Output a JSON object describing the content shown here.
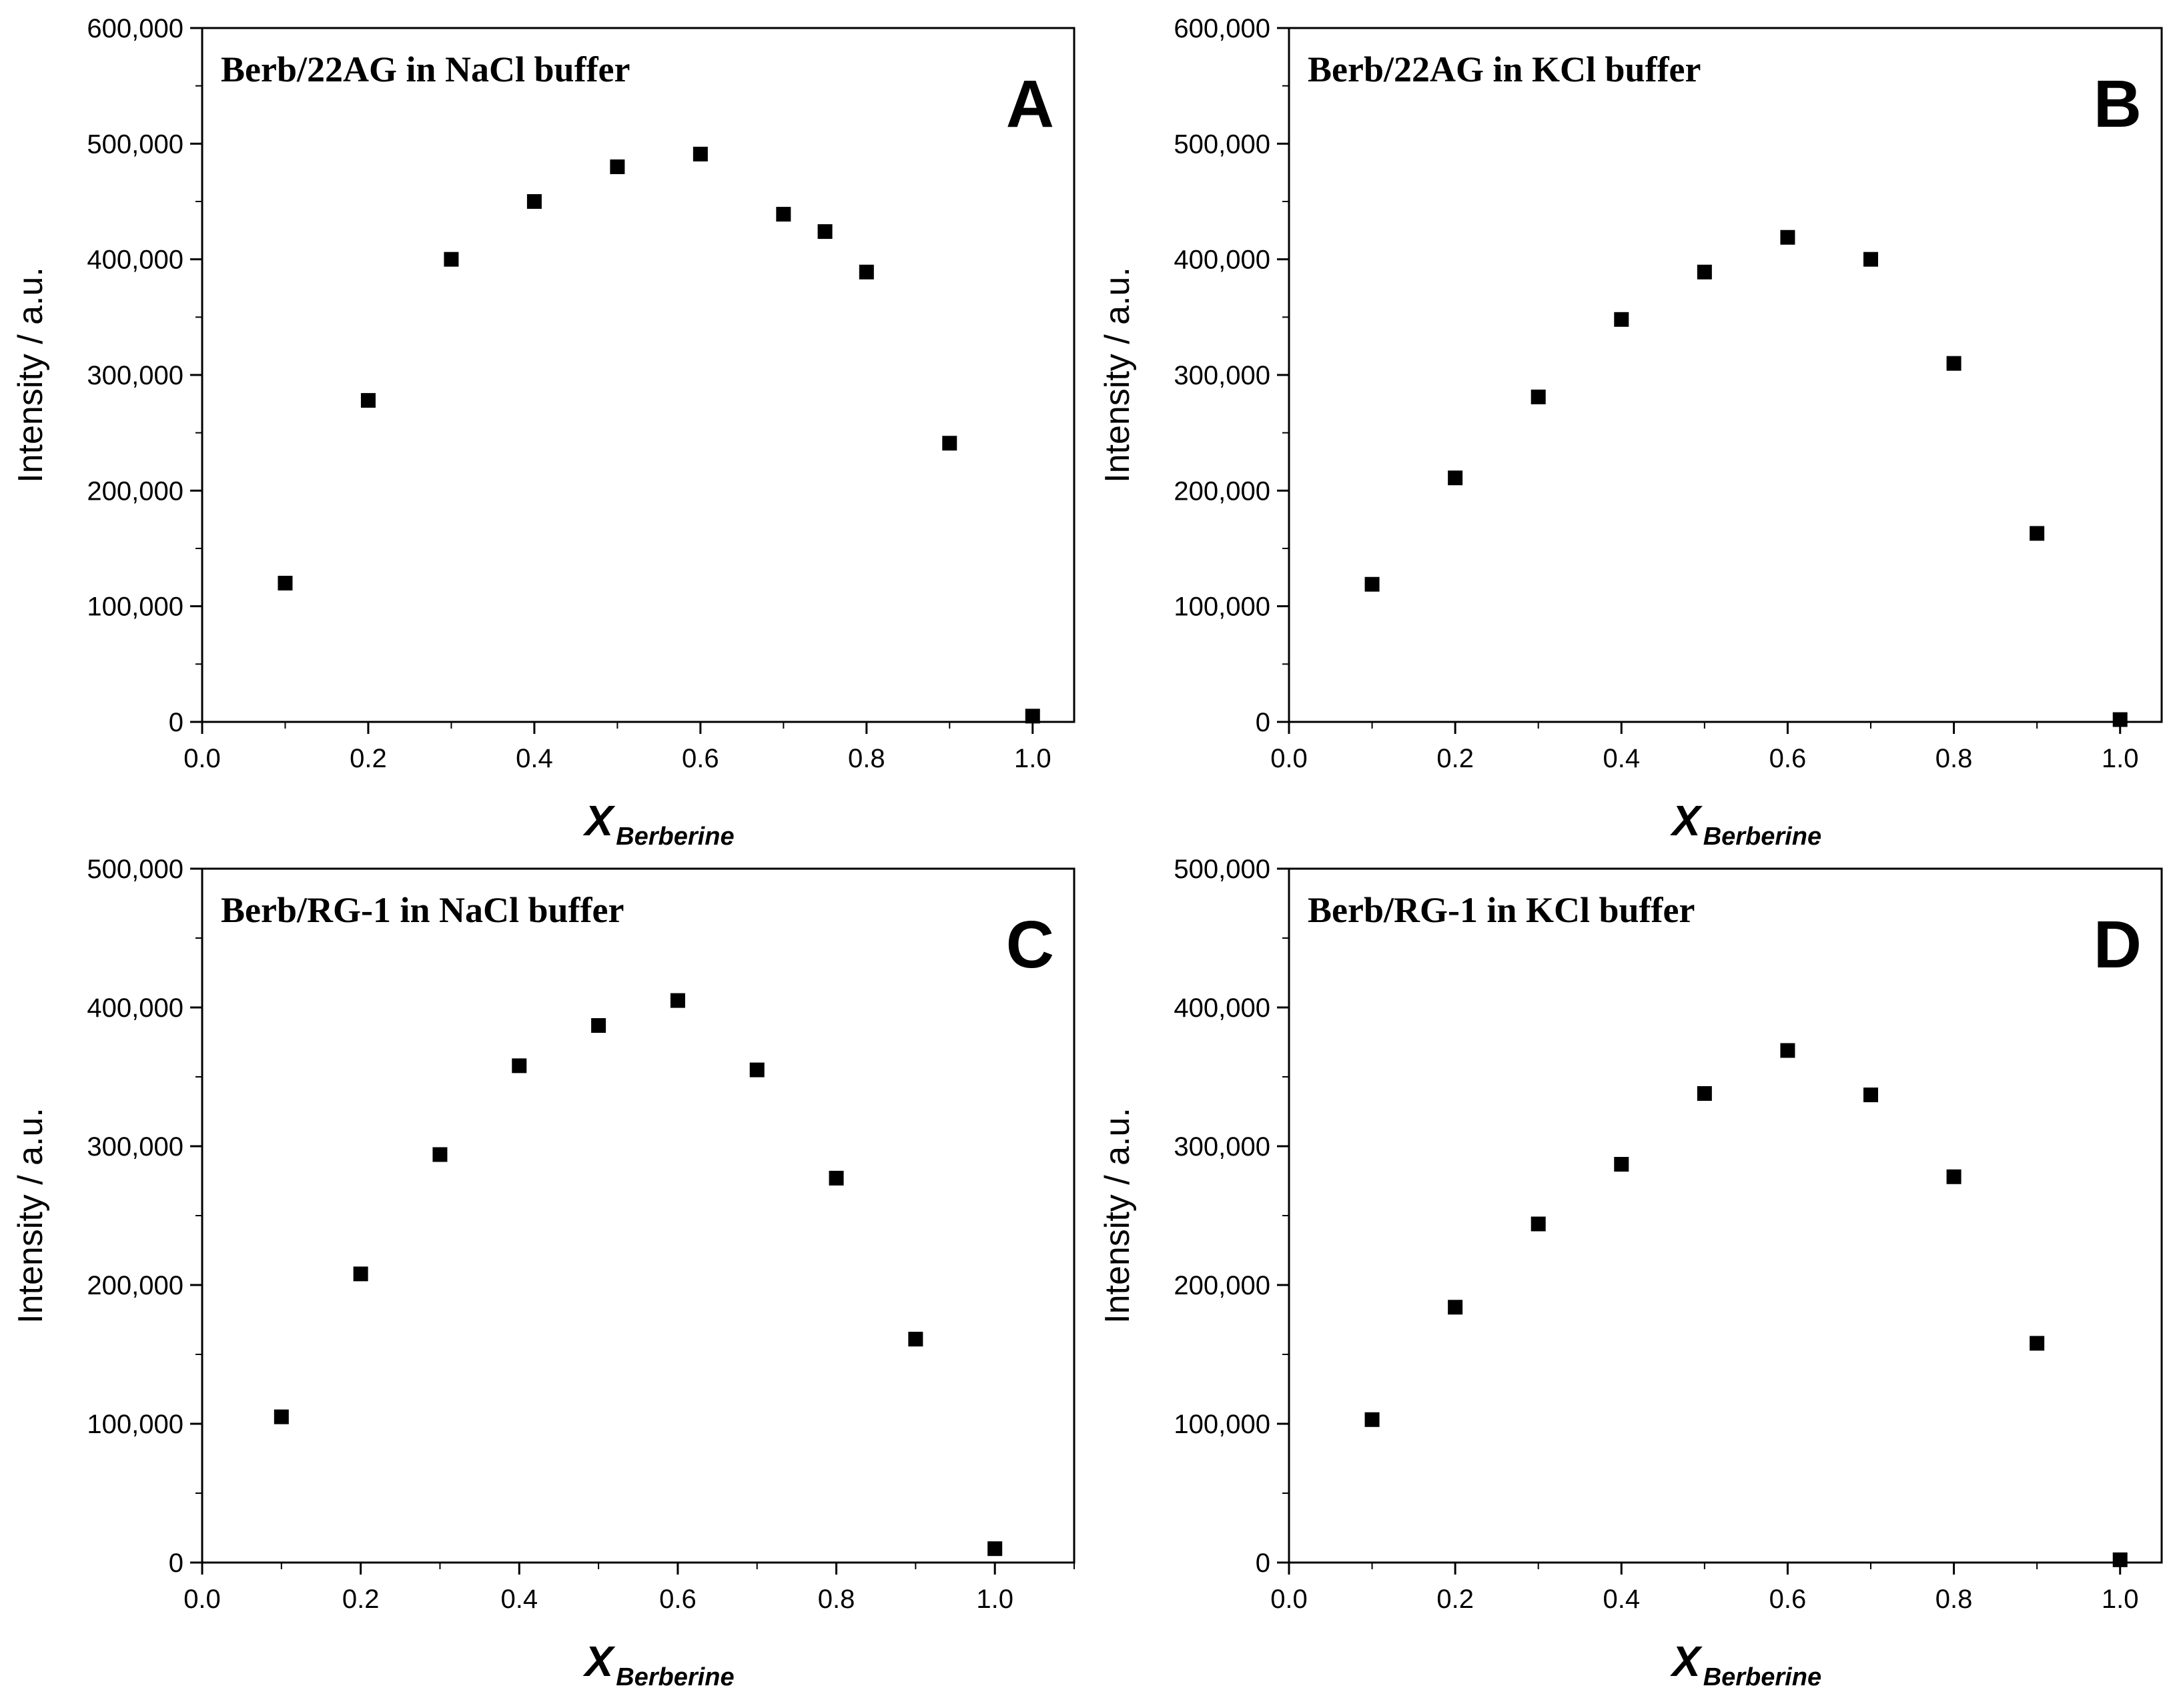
{
  "chart_data": [
    {
      "type": "scatter",
      "panel_label": "A",
      "title": "Berb/22AG in NaCl buffer",
      "xlabel": "X",
      "xlabel_subscript": "Berberine",
      "ylabel": "Intensity / a.u.",
      "xlim": [
        0.0,
        1.05
      ],
      "ylim": [
        0,
        600000
      ],
      "x_ticks": [
        "0.0",
        "0.2",
        "0.4",
        "0.6",
        "0.8",
        "1.0"
      ],
      "y_ticks": [
        "0",
        "100,000",
        "200,000",
        "300,000",
        "400,000",
        "500,000",
        "600,000"
      ],
      "x": [
        0.1,
        0.2,
        0.3,
        0.4,
        0.5,
        0.6,
        0.7,
        0.75,
        0.8,
        0.9,
        1.0
      ],
      "values": [
        120000,
        278000,
        400000,
        450000,
        480000,
        491000,
        439000,
        424000,
        389000,
        241000,
        5000
      ]
    },
    {
      "type": "scatter",
      "panel_label": "B",
      "title": "Berb/22AG in KCl buffer",
      "xlabel": "X",
      "xlabel_subscript": "Berberine",
      "ylabel": "Intensity / a.u.",
      "xlim": [
        0.0,
        1.05
      ],
      "ylim": [
        0,
        600000
      ],
      "x_ticks": [
        "0.0",
        "0.2",
        "0.4",
        "0.6",
        "0.8",
        "1.0"
      ],
      "y_ticks": [
        "0",
        "100,000",
        "200,000",
        "300,000",
        "400,000",
        "500,000",
        "600,000"
      ],
      "x": [
        0.1,
        0.2,
        0.3,
        0.4,
        0.5,
        0.6,
        0.7,
        0.8,
        0.9,
        1.0
      ],
      "values": [
        119000,
        211000,
        281000,
        348000,
        389000,
        419000,
        400000,
        310000,
        163000,
        2000
      ]
    },
    {
      "type": "scatter",
      "panel_label": "C",
      "title": "Berb/RG-1 in NaCl buffer",
      "xlabel": "X",
      "xlabel_subscript": "Berberine",
      "ylabel": "Intensity / a.u.",
      "xlim": [
        0.0,
        1.1
      ],
      "ylim": [
        0,
        500000
      ],
      "x_ticks": [
        "0.0",
        "0.2",
        "0.4",
        "0.6",
        "0.8",
        "1.0"
      ],
      "y_ticks": [
        "0",
        "100,000",
        "200,000",
        "300,000",
        "400,000",
        "500,000"
      ],
      "x": [
        0.1,
        0.2,
        0.3,
        0.4,
        0.5,
        0.6,
        0.7,
        0.8,
        0.9,
        1.0
      ],
      "values": [
        105000,
        208000,
        294000,
        358000,
        387000,
        405000,
        355000,
        277000,
        161000,
        10000
      ]
    },
    {
      "type": "scatter",
      "panel_label": "D",
      "title": "Berb/RG-1 in KCl buffer",
      "xlabel": "X",
      "xlabel_subscript": "Berberine",
      "ylabel": "Intensity / a.u.",
      "xlim": [
        0.0,
        1.05
      ],
      "ylim": [
        0,
        500000
      ],
      "x_ticks": [
        "0.0",
        "0.2",
        "0.4",
        "0.6",
        "0.8",
        "1.0"
      ],
      "y_ticks": [
        "0",
        "100,000",
        "200,000",
        "300,000",
        "400,000",
        "500,000"
      ],
      "x": [
        0.1,
        0.2,
        0.3,
        0.4,
        0.5,
        0.6,
        0.7,
        0.8,
        0.9,
        1.0
      ],
      "values": [
        103000,
        184000,
        244000,
        287000,
        338000,
        369000,
        337000,
        278000,
        158000,
        2000
      ]
    }
  ]
}
